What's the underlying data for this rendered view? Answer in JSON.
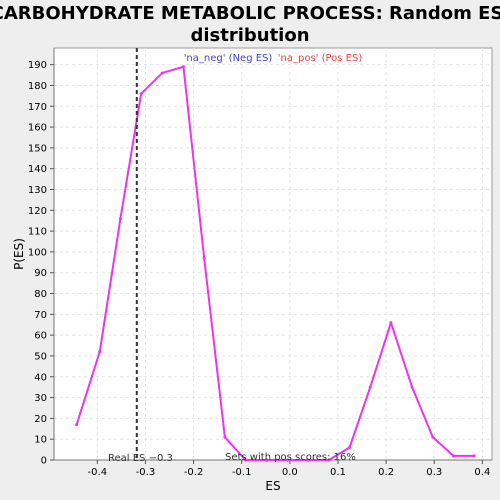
{
  "chart_data": {
    "type": "line",
    "title_lines": [
      "CARBOHYDRATE METABOLIC PROCESS: Random ES",
      "distribution"
    ],
    "xlabel": "ES",
    "ylabel": "P(ES)",
    "xlim": [
      -0.49,
      0.42
    ],
    "ylim": [
      0,
      198
    ],
    "x_ticks": [
      -0.4,
      -0.3,
      -0.2,
      -0.1,
      0.0,
      0.1,
      0.2,
      0.3,
      0.4
    ],
    "x_tick_labels": [
      "-0.4",
      "-0.3",
      "-0.2",
      "-0.1",
      "0.0",
      "0.1",
      "0.2",
      "0.3",
      "0.4"
    ],
    "y_ticks": [
      0,
      10,
      20,
      30,
      40,
      50,
      60,
      70,
      80,
      90,
      100,
      110,
      120,
      130,
      140,
      150,
      160,
      170,
      180,
      190
    ],
    "y_tick_labels": [
      "0",
      "10",
      "20",
      "30",
      "40",
      "50",
      "60",
      "70",
      "80",
      "90",
      "100",
      "110",
      "120",
      "130",
      "140",
      "150",
      "160",
      "170",
      "180",
      "190"
    ],
    "grid": true,
    "legend_position": "top",
    "series": [
      {
        "name": "'na_neg' (Neg ES)",
        "color": "#ee33ee",
        "legend_color": "#4444cc",
        "x": [
          -0.443,
          -0.395,
          -0.352,
          -0.309,
          -0.265,
          -0.221,
          -0.178,
          -0.135,
          -0.092,
          -0.048,
          -0.005,
          0.038,
          0.081,
          0.124,
          0.167,
          0.21,
          0.254,
          0.297,
          0.34,
          0.383
        ],
        "y": [
          17,
          52,
          116,
          176,
          186,
          189,
          97,
          11,
          0,
          0,
          0,
          0,
          0,
          6,
          35,
          66,
          35,
          11,
          2,
          2
        ]
      },
      {
        "name": "'na_pos' (Pos ES)",
        "color": "#ee4444",
        "legend_color": "#ee4444",
        "x": [],
        "y": []
      }
    ],
    "annotations": {
      "real_es_label": "Real ES −0.3",
      "real_es_value": -0.318,
      "pos_scores_label": "Sets with pos scores: 16%"
    }
  }
}
